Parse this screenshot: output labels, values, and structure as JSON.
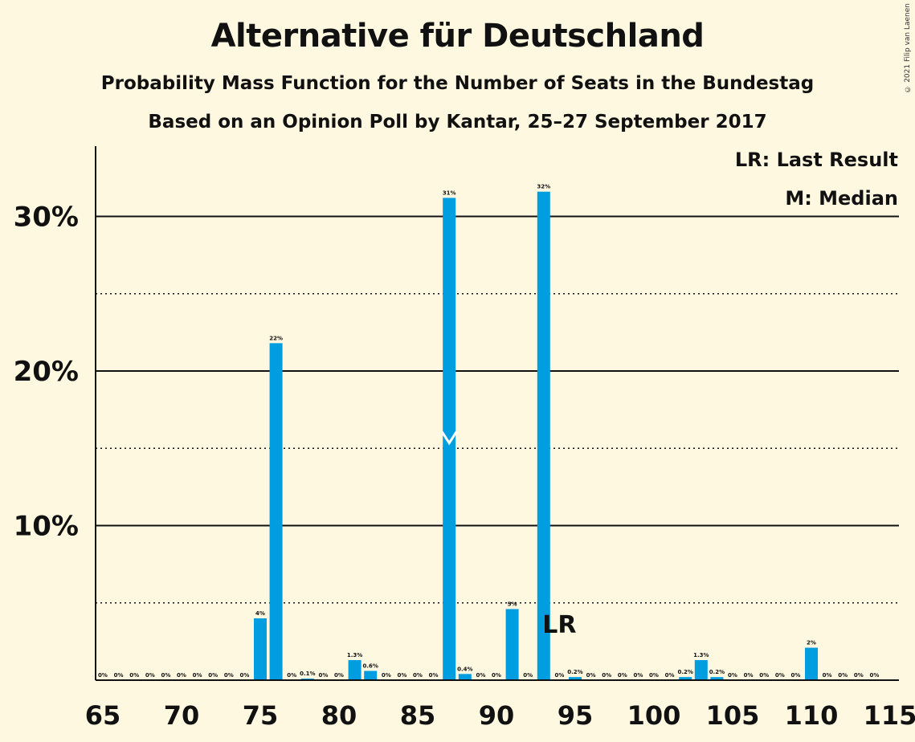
{
  "header": {
    "title": "Alternative für Deutschland",
    "subtitle": "Probability Mass Function for the Number of Seats in the Bundestag",
    "subtitle2": "Based on an Opinion Poll by Kantar, 25–27 September 2017",
    "copyright": "© 2021 Filip van Laenen"
  },
  "legend": {
    "last_result": "LR: Last Result",
    "median": "M: Median"
  },
  "colors": {
    "bar": "#009de0",
    "background": "#fff8e1",
    "text": "#111111"
  },
  "chart_data": {
    "type": "bar",
    "title": "Alternative für Deutschland",
    "subtitle": "Probability Mass Function for the Number of Seats in the Bundestag",
    "x": [
      65,
      66,
      67,
      68,
      69,
      70,
      71,
      72,
      73,
      74,
      75,
      76,
      77,
      78,
      79,
      80,
      81,
      82,
      83,
      84,
      85,
      86,
      87,
      88,
      89,
      90,
      91,
      92,
      93,
      94,
      95,
      96,
      97,
      98,
      99,
      100,
      101,
      102,
      103,
      104,
      105,
      106,
      107,
      108,
      109,
      110,
      111,
      112,
      113,
      114,
      115
    ],
    "values": [
      0,
      0,
      0,
      0,
      0,
      0,
      0,
      0,
      0,
      0,
      4.0,
      21.8,
      0,
      0.1,
      0,
      0,
      1.3,
      0.6,
      0,
      0,
      0,
      0,
      31.2,
      0.4,
      0,
      0,
      4.6,
      0,
      31.6,
      0,
      0.2,
      0,
      0,
      0,
      0,
      0,
      0,
      0.2,
      1.3,
      0.2,
      0,
      0,
      0,
      0,
      0,
      2.1,
      0,
      0,
      0,
      0,
      0
    ],
    "labels": [
      "0%",
      "0%",
      "0%",
      "0%",
      "0%",
      "0%",
      "0%",
      "0%",
      "0%",
      "0%",
      "4%",
      "22%",
      "0%",
      "0.1%",
      "0%",
      "0%",
      "1.3%",
      "0.6%",
      "0%",
      "0%",
      "0%",
      "0%",
      "31%",
      "0.4%",
      "0%",
      "0%",
      "5%",
      "0%",
      "32%",
      "0%",
      "0.2%",
      "0%",
      "0%",
      "0%",
      "0%",
      "0%",
      "0%",
      "0.2%",
      "1.3%",
      "0.2%",
      "0%",
      "0%",
      "0%",
      "0%",
      "0%",
      "2%",
      "0%",
      "0%",
      "0%",
      "0%",
      ""
    ],
    "xticks": [
      65,
      70,
      75,
      80,
      85,
      90,
      95,
      100,
      105,
      110,
      115
    ],
    "yticks": [
      {
        "value": 10,
        "label": "10%"
      },
      {
        "value": 20,
        "label": "20%"
      },
      {
        "value": 30,
        "label": "30%"
      }
    ],
    "ylim": [
      0,
      34
    ],
    "median": 87,
    "last_result": 94,
    "last_result_label": "LR"
  }
}
